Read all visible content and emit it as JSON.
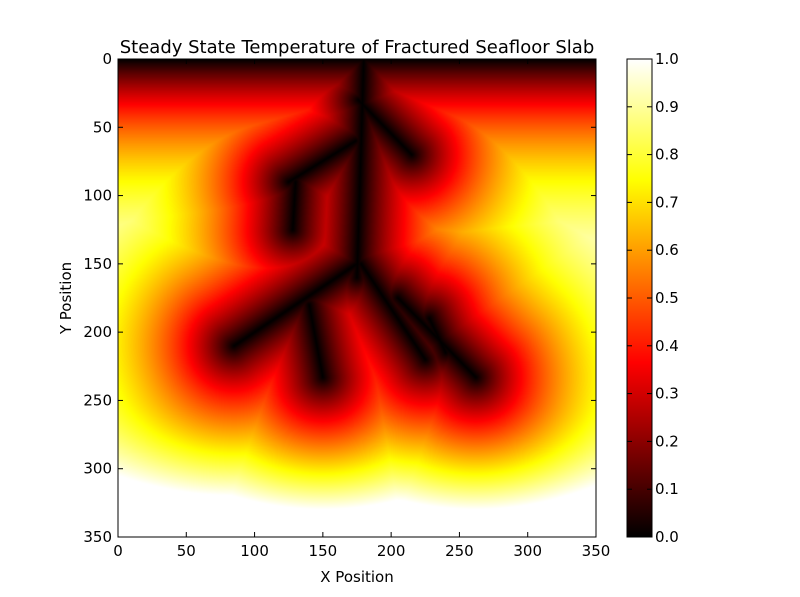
{
  "chart_data": {
    "type": "heatmap",
    "title": "Steady State Temperature of Fractured Seafloor Slab",
    "xlabel": "X Position",
    "ylabel": "Y Position",
    "xlim": [
      0,
      350
    ],
    "ylim": [
      350,
      0
    ],
    "x_ticks": [
      "0",
      "50",
      "100",
      "150",
      "200",
      "250",
      "300",
      "350"
    ],
    "y_ticks": [
      "0",
      "50",
      "100",
      "150",
      "200",
      "250",
      "300",
      "350"
    ],
    "colormap": "hot",
    "colorbar": {
      "range": [
        0.0,
        1.0
      ],
      "ticks": [
        "0.0",
        "0.1",
        "0.2",
        "0.3",
        "0.4",
        "0.5",
        "0.6",
        "0.7",
        "0.8",
        "0.9",
        "1.0"
      ]
    },
    "fractures": [
      {
        "from": [
          180,
          0
        ],
        "to": [
          175,
          160
        ]
      },
      {
        "from": [
          176,
          30
        ],
        "to": [
          215,
          70
        ]
      },
      {
        "from": [
          174,
          60
        ],
        "to": [
          125,
          90
        ]
      },
      {
        "from": [
          130,
          90
        ],
        "to": [
          128,
          125
        ]
      },
      {
        "from": [
          175,
          150
        ],
        "to": [
          85,
          210
        ]
      },
      {
        "from": [
          140,
          180
        ],
        "to": [
          150,
          233
        ]
      },
      {
        "from": [
          178,
          150
        ],
        "to": [
          225,
          220
        ]
      },
      {
        "from": [
          205,
          175
        ],
        "to": [
          262,
          233
        ]
      },
      {
        "from": [
          228,
          190
        ],
        "to": [
          240,
          215
        ]
      }
    ]
  }
}
